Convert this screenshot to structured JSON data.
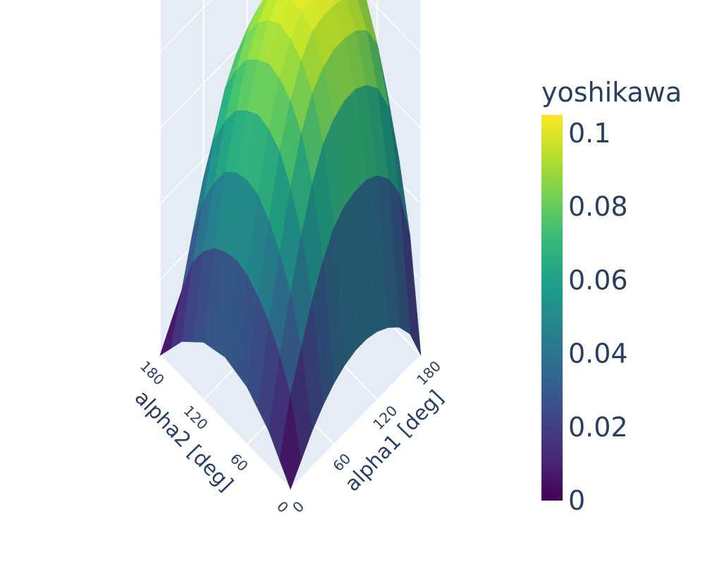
{
  "chart_data": {
    "type": "surface",
    "title": "",
    "x": {
      "label": "alpha1 [deg]",
      "range": [
        0,
        180
      ],
      "ticks": [
        0,
        60,
        120,
        180
      ],
      "tick_labels": [
        "0",
        "60",
        "120",
        "180"
      ]
    },
    "y": {
      "label": "alpha2 [deg]",
      "range": [
        0,
        180
      ],
      "ticks": [
        0,
        60,
        120,
        180
      ],
      "tick_labels": [
        "0",
        "60",
        "120",
        "180"
      ]
    },
    "z": {
      "range": [
        0,
        0.105
      ]
    },
    "grid": true,
    "colorscale": "Viridis",
    "colorbar": {
      "title": "yoshikawa",
      "range": [
        0,
        0.105
      ],
      "ticks": [
        0,
        0.02,
        0.04,
        0.06,
        0.08,
        0.1
      ],
      "tick_labels": [
        "0",
        "0.02",
        "0.04",
        "0.06",
        "0.08",
        "0.1"
      ],
      "placement": "right"
    },
    "grid_step_deg": 15,
    "z_values": [
      [
        0.0,
        0.005,
        0.01,
        0.013,
        0.016,
        0.017,
        0.018,
        0.017,
        0.016,
        0.013,
        0.01,
        0.005,
        0.0
      ],
      [
        0.005,
        0.02,
        0.028,
        0.034,
        0.038,
        0.041,
        0.042,
        0.041,
        0.039,
        0.035,
        0.029,
        0.018,
        0.006
      ],
      [
        0.01,
        0.03,
        0.042,
        0.05,
        0.056,
        0.06,
        0.061,
        0.06,
        0.057,
        0.051,
        0.043,
        0.031,
        0.011
      ],
      [
        0.014,
        0.04,
        0.055,
        0.065,
        0.072,
        0.075,
        0.076,
        0.074,
        0.071,
        0.065,
        0.057,
        0.043,
        0.015
      ],
      [
        0.017,
        0.048,
        0.066,
        0.077,
        0.083,
        0.086,
        0.087,
        0.085,
        0.082,
        0.076,
        0.068,
        0.052,
        0.018
      ],
      [
        0.019,
        0.054,
        0.074,
        0.085,
        0.091,
        0.094,
        0.095,
        0.093,
        0.089,
        0.083,
        0.074,
        0.058,
        0.02
      ],
      [
        0.02,
        0.057,
        0.078,
        0.089,
        0.096,
        0.098,
        0.099,
        0.097,
        0.093,
        0.087,
        0.078,
        0.061,
        0.021
      ],
      [
        0.02,
        0.058,
        0.08,
        0.091,
        0.097,
        0.099,
        0.1,
        0.099,
        0.095,
        0.089,
        0.08,
        0.062,
        0.021
      ],
      [
        0.019,
        0.058,
        0.08,
        0.091,
        0.097,
        0.1,
        0.101,
        0.1,
        0.096,
        0.09,
        0.081,
        0.062,
        0.02
      ],
      [
        0.017,
        0.056,
        0.078,
        0.09,
        0.096,
        0.1,
        0.102,
        0.101,
        0.097,
        0.091,
        0.081,
        0.061,
        0.018
      ],
      [
        0.014,
        0.052,
        0.074,
        0.087,
        0.094,
        0.099,
        0.102,
        0.101,
        0.098,
        0.092,
        0.08,
        0.058,
        0.015
      ],
      [
        0.009,
        0.045,
        0.066,
        0.08,
        0.089,
        0.095,
        0.099,
        0.1,
        0.097,
        0.09,
        0.076,
        0.05,
        0.01
      ],
      [
        0.0,
        0.03,
        0.048,
        0.062,
        0.072,
        0.08,
        0.086,
        0.088,
        0.086,
        0.078,
        0.062,
        0.035,
        0.0
      ]
    ]
  }
}
